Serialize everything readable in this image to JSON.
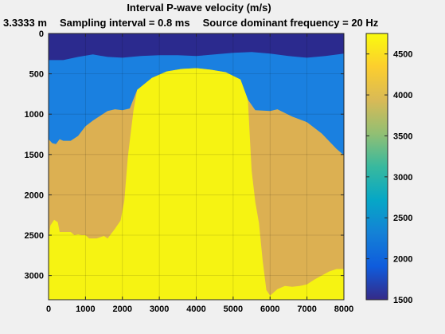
{
  "chart_data": {
    "type": "heatmap",
    "title": "Interval P-wave velocity (m/s)",
    "subtitle_parts": [
      "3.3333 m",
      "Sampling interval = 0.8 ms",
      "Source dominant frequency = 20 Hz"
    ],
    "xlabel": "",
    "ylabel": "",
    "xlim": [
      0,
      8000
    ],
    "ylim": [
      3300,
      0
    ],
    "x_ticks": [
      0,
      1000,
      2000,
      3000,
      4000,
      5000,
      6000,
      7000,
      8000
    ],
    "y_ticks": [
      0,
      500,
      1000,
      1500,
      2000,
      2500,
      3000
    ],
    "grid": true,
    "colormap": "parula",
    "colorbar": {
      "range": [
        1500,
        4750
      ],
      "ticks": [
        1500,
        2000,
        2500,
        3000,
        3500,
        4000,
        4500
      ],
      "stops": [
        "#352a87",
        "#0f5cdd",
        "#1481d6",
        "#06a7c6",
        "#38b99e",
        "#92bf73",
        "#d9ba56",
        "#fcce2e",
        "#f9fb0e"
      ]
    },
    "layers": [
      {
        "name": "water",
        "velocity": 1500,
        "color": "#2b2a8e",
        "top": [
          [
            0,
            0
          ],
          [
            8000,
            0
          ]
        ]
      },
      {
        "name": "shallow",
        "velocity": 2000,
        "color": "#1a80e0",
        "top": [
          [
            0,
            330
          ],
          [
            400,
            330
          ],
          [
            800,
            290
          ],
          [
            1200,
            260
          ],
          [
            1600,
            290
          ],
          [
            2000,
            300
          ],
          [
            2500,
            280
          ],
          [
            3000,
            270
          ],
          [
            3500,
            270
          ],
          [
            4000,
            280
          ],
          [
            4500,
            260
          ],
          [
            5000,
            240
          ],
          [
            5500,
            230
          ],
          [
            6000,
            250
          ],
          [
            6500,
            280
          ],
          [
            7000,
            300
          ],
          [
            7500,
            280
          ],
          [
            8000,
            250
          ]
        ]
      },
      {
        "name": "sediment",
        "velocity": 4000,
        "color": "#dcb052",
        "top": [
          [
            0,
            1310
          ],
          [
            100,
            1360
          ],
          [
            200,
            1370
          ],
          [
            300,
            1310
          ],
          [
            400,
            1330
          ],
          [
            600,
            1330
          ],
          [
            800,
            1270
          ],
          [
            1000,
            1150
          ],
          [
            1200,
            1080
          ],
          [
            1400,
            1020
          ],
          [
            1600,
            960
          ],
          [
            1800,
            940
          ],
          [
            2000,
            950
          ],
          [
            2200,
            930
          ],
          [
            2400,
            700
          ],
          [
            2800,
            550
          ],
          [
            3200,
            470
          ],
          [
            3600,
            440
          ],
          [
            4000,
            430
          ],
          [
            4400,
            450
          ],
          [
            4800,
            480
          ],
          [
            5200,
            570
          ],
          [
            5400,
            820
          ],
          [
            5600,
            950
          ],
          [
            6000,
            960
          ],
          [
            6200,
            940
          ],
          [
            6600,
            1030
          ],
          [
            7000,
            1100
          ],
          [
            7400,
            1240
          ],
          [
            7800,
            1430
          ],
          [
            8000,
            1510
          ]
        ]
      },
      {
        "name": "salt",
        "velocity": 4750,
        "color": "#f6f312",
        "top": [
          [
            0,
            2550
          ],
          [
            50,
            2380
          ],
          [
            150,
            2310
          ],
          [
            250,
            2340
          ],
          [
            300,
            2460
          ],
          [
            450,
            2460
          ],
          [
            600,
            2460
          ],
          [
            700,
            2500
          ],
          [
            800,
            2490
          ],
          [
            900,
            2500
          ],
          [
            1000,
            2500
          ],
          [
            1100,
            2540
          ],
          [
            1300,
            2540
          ],
          [
            1500,
            2510
          ],
          [
            1600,
            2540
          ],
          [
            1800,
            2420
          ],
          [
            1950,
            2320
          ],
          [
            2050,
            2080
          ],
          [
            2150,
            1520
          ],
          [
            2300,
            950
          ],
          [
            2400,
            700
          ],
          [
            2800,
            550
          ],
          [
            3200,
            470
          ],
          [
            3600,
            440
          ],
          [
            4000,
            430
          ],
          [
            4400,
            450
          ],
          [
            4800,
            480
          ],
          [
            5200,
            570
          ],
          [
            5400,
            820
          ],
          [
            5450,
            1260
          ],
          [
            5500,
            1700
          ],
          [
            5600,
            2090
          ],
          [
            5700,
            2350
          ],
          [
            5800,
            2820
          ],
          [
            5900,
            3180
          ],
          [
            6000,
            3250
          ],
          [
            6200,
            3170
          ],
          [
            6400,
            3130
          ],
          [
            6600,
            3140
          ],
          [
            6800,
            3130
          ],
          [
            7000,
            3110
          ],
          [
            7200,
            3050
          ],
          [
            7400,
            3000
          ],
          [
            7600,
            2950
          ],
          [
            7800,
            2920
          ],
          [
            8000,
            2920
          ]
        ]
      }
    ]
  }
}
